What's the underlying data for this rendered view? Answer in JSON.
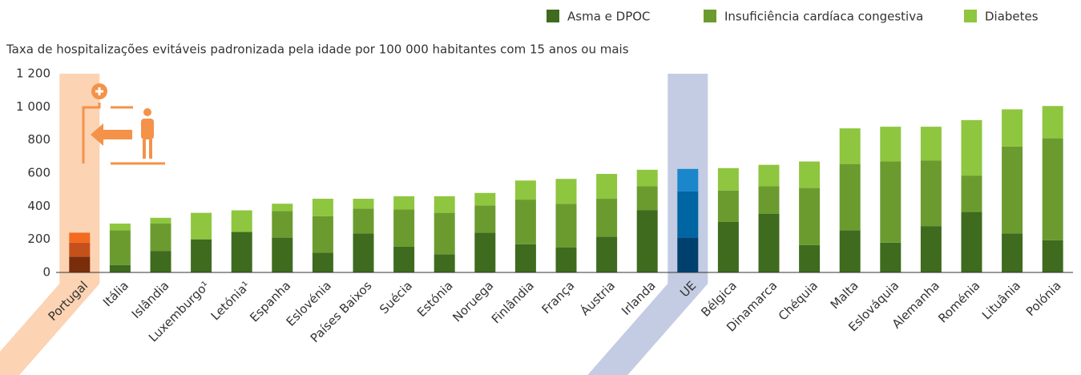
{
  "chart_data": {
    "type": "stacked_bar",
    "subtitle": "Taxa de hospitalizações evitáveis padronizada pela idade por 100 000 habitantes com 15 anos ou mais",
    "categories": [
      "Portugal",
      "Itália",
      "Islândia",
      "Luxemburgo¹",
      "Letónia¹",
      "Espanha",
      "Eslovénia",
      "Países Baixos",
      "Suécia",
      "Estónia",
      "Noruega",
      "Finlândia",
      "França",
      "Áustria",
      "Irlanda",
      "UE",
      "Bélgica",
      "Dinamarca",
      "Chéquia",
      "Malta",
      "Eslováquia",
      "Alemanha",
      "Roménia",
      "Lituânia",
      "Polónia"
    ],
    "series": [
      {
        "name": "Asma e DPOC",
        "color": "#3e6b1e",
        "values": [
          95,
          45,
          130,
          200,
          245,
          210,
          120,
          235,
          155,
          110,
          240,
          170,
          150,
          215,
          375,
          210,
          305,
          355,
          165,
          255,
          180,
          280,
          365,
          235,
          195
        ]
      },
      {
        "name": "Insuficiência cardíaca congestiva",
        "color": "#6b9b2f",
        "values": [
          85,
          210,
          165,
          0,
          0,
          160,
          220,
          150,
          225,
          250,
          165,
          270,
          265,
          230,
          145,
          280,
          190,
          165,
          345,
          400,
          490,
          395,
          220,
          525,
          615
        ]
      },
      {
        "name": "Diabetes",
        "color": "#8ec63f",
        "values": [
          60,
          40,
          35,
          160,
          130,
          45,
          105,
          60,
          80,
          100,
          75,
          115,
          150,
          150,
          100,
          135,
          135,
          130,
          160,
          215,
          210,
          205,
          335,
          225,
          195
        ]
      }
    ],
    "highlights": [
      {
        "category": "Portugal",
        "band_color": "#fcd3b3",
        "colors": [
          "#7a2d0a",
          "#c4511b",
          "#f26b1e"
        ]
      },
      {
        "category": "UE",
        "band_color": "#c3cce2",
        "colors": [
          "#00406e",
          "#0065a3",
          "#1a86cc"
        ]
      }
    ],
    "ylim": [
      0,
      1200
    ],
    "yticks": [
      0,
      200,
      400,
      600,
      800,
      {
        "value": 1000,
        "label": "1 000"
      },
      {
        "value": 1200,
        "label": "1 200"
      }
    ],
    "grid": false
  }
}
